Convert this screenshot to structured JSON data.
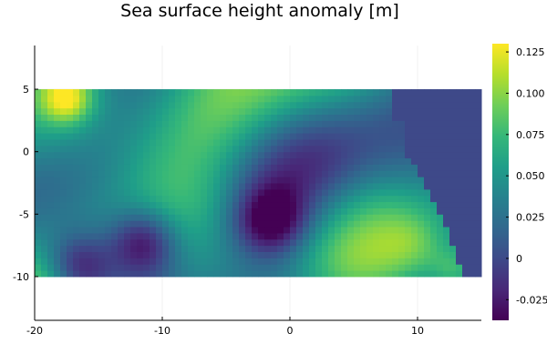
{
  "chart_data": {
    "type": "heatmap",
    "title": "Sea surface height anomaly [m]",
    "xlabel": "",
    "ylabel": "",
    "xlim": [
      -20,
      15
    ],
    "ylim": [
      -13.5,
      8.5
    ],
    "data_extent": {
      "x": [
        -20,
        15
      ],
      "y": [
        -10,
        5
      ]
    },
    "xticks": [
      -20,
      -10,
      0,
      10
    ],
    "yticks": [
      5,
      0,
      -5,
      -10
    ],
    "colorbar": {
      "colormap": "viridis",
      "clim": [
        -0.0375,
        0.13
      ],
      "ticks": [
        0.125,
        0.1,
        0.075,
        0.05,
        0.025,
        0,
        -0.025
      ],
      "tick_labels": [
        "0.125",
        "0.100",
        "0.075",
        "0.050",
        "0.025",
        "0",
        "-0.025"
      ]
    },
    "grid": true,
    "masked_value": 0.0,
    "mask_boundary_note": "constant region east of an irregular coastline",
    "features": [
      {
        "label": "high anomaly",
        "x": -17.5,
        "y": 4.3,
        "value": 0.125
      },
      {
        "label": "low anomaly",
        "x": -11.5,
        "y": -7.3,
        "value": -0.03
      },
      {
        "label": "low anomaly",
        "x": -16.5,
        "y": -9.2,
        "value": -0.028
      },
      {
        "label": "low anomaly",
        "x": -1.5,
        "y": -5.5,
        "value": -0.02
      },
      {
        "label": "high anomaly",
        "x": 10.0,
        "y": -7.5,
        "value": 0.08
      },
      {
        "label": "high anomaly",
        "x": 13.0,
        "y": -9.6,
        "value": 0.1
      }
    ]
  }
}
